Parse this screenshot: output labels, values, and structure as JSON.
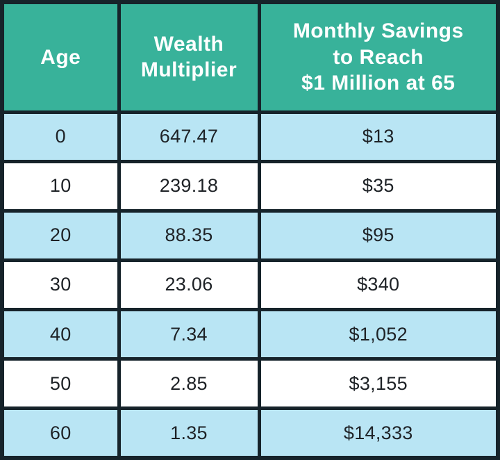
{
  "colors": {
    "header_bg": "#38b29a",
    "header_text": "#ffffff",
    "row_alt_bg": "#b9e5f4",
    "row_bg": "#ffffff",
    "border": "#16232a",
    "cell_text": "#1e2226"
  },
  "header": {
    "age_lines": [
      "Age"
    ],
    "multiplier_lines": [
      "Wealth",
      "Multiplier"
    ],
    "savings_lines": [
      "Monthly Savings",
      "to Reach",
      "$1 Million at 65"
    ]
  },
  "chart_data": {
    "type": "table",
    "columns": [
      "Age",
      "Wealth Multiplier",
      "Monthly Savings to Reach $1 Million at 65"
    ],
    "rows": [
      [
        "0",
        "647.47",
        "$13"
      ],
      [
        "10",
        "239.18",
        "$35"
      ],
      [
        "20",
        "88.35",
        "$95"
      ],
      [
        "30",
        "23.06",
        "$340"
      ],
      [
        "40",
        "7.34",
        "$1,052"
      ],
      [
        "50",
        "2.85",
        "$3,155"
      ],
      [
        "60",
        "1.35",
        "$14,333"
      ]
    ]
  }
}
